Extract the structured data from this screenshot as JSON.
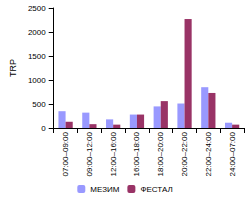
{
  "chart_data": {
    "type": "bar",
    "categories": [
      "07:00–09:00",
      "09:00–12:00",
      "12:00–16:00",
      "16:00–18:00",
      "18:00–20:00",
      "20:00–22:00",
      "22:00–24:00",
      "24:00–07:00"
    ],
    "series": [
      {
        "name": "МЕЗИМ",
        "color": "#9999ff",
        "values": [
          350,
          320,
          180,
          280,
          450,
          510,
          850,
          110
        ]
      },
      {
        "name": "ФЕСТАЛ",
        "color": "#993366",
        "values": [
          130,
          80,
          70,
          280,
          560,
          2270,
          730,
          70
        ]
      }
    ],
    "y_label": "TRP",
    "ylim": [
      0,
      2500
    ],
    "yticks": [
      0,
      500,
      1000,
      1500,
      2000,
      2500
    ],
    "grid": false,
    "legend": "bottom"
  }
}
